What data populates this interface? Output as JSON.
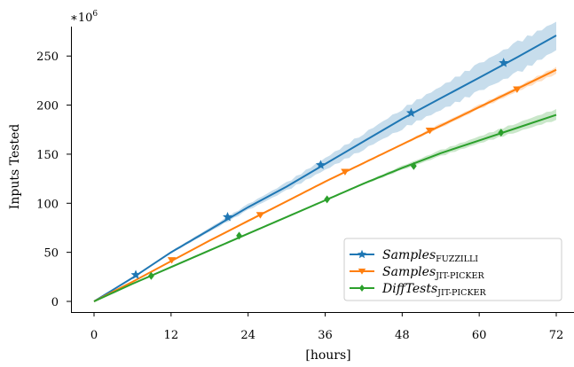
{
  "chart_data": {
    "type": "line",
    "title": "",
    "xlabel": "[hours]",
    "ylabel": "Inputs Tested",
    "y_multiplier_label": "∗10",
    "y_multiplier_exponent": "6",
    "xlim": [
      0,
      72
    ],
    "ylim": [
      0,
      280
    ],
    "x_ticks": [
      0,
      12,
      24,
      36,
      48,
      60,
      72
    ],
    "y_ticks": [
      0,
      50,
      100,
      150,
      200,
      250
    ],
    "grid": false,
    "legend_position": "lower-right",
    "series": [
      {
        "name": "Samples",
        "name_subscript": "Fuzzilli",
        "color": "#1f77b4",
        "marker": "star",
        "x": [
          0,
          6,
          12,
          18,
          24,
          30,
          36,
          42,
          48,
          54,
          60,
          66,
          72
        ],
        "y": [
          0,
          24,
          50,
          73,
          96,
          117,
          140,
          163,
          186,
          207,
          228,
          249,
          271
        ],
        "band_low": [
          0,
          24,
          49,
          71,
          93,
          113,
          134,
          155,
          176,
          195,
          214,
          233,
          256
        ],
        "band_high": [
          0,
          25,
          51,
          75,
          99,
          121,
          146,
          171,
          196,
          219,
          242,
          264,
          285
        ],
        "marker_x": [
          6.5,
          20.8,
          35.3,
          49.4,
          63.8
        ],
        "marker_y": [
          27,
          86,
          139,
          192,
          243
        ]
      },
      {
        "name": "Samples",
        "name_subscript": "Jit-Picker",
        "color": "#ff7f0e",
        "marker": "triangle-down",
        "x": [
          0,
          6,
          12,
          18,
          24,
          30,
          36,
          42,
          48,
          54,
          60,
          66,
          72
        ],
        "y": [
          0,
          20,
          41,
          62,
          82,
          102,
          122,
          141,
          160,
          179,
          198,
          217,
          236
        ],
        "band_low": [
          0,
          20,
          41,
          61,
          81,
          101,
          121,
          140,
          159,
          177,
          196,
          214,
          232
        ],
        "band_high": [
          0,
          20,
          41,
          63,
          83,
          103,
          123,
          142,
          161,
          181,
          200,
          219,
          239
        ],
        "marker_x": [
          12.1,
          25.9,
          39.1,
          52.3,
          65.9
        ],
        "marker_y": [
          42,
          88,
          132,
          174,
          216
        ]
      },
      {
        "name": "DiffTests",
        "name_subscript": "Jit-Picker",
        "color": "#2ca02c",
        "marker": "diamond",
        "x": [
          0,
          6,
          12,
          18,
          24,
          30,
          36,
          42,
          48,
          54,
          60,
          66,
          72
        ],
        "y": [
          0,
          18,
          35,
          52,
          69,
          86,
          103,
          120,
          136,
          151,
          164,
          177,
          190
        ],
        "band_low": [
          0,
          18,
          35,
          52,
          69,
          86,
          103,
          119,
          134,
          148,
          161,
          173,
          185
        ],
        "band_high": [
          0,
          18,
          36,
          53,
          70,
          87,
          104,
          121,
          138,
          154,
          168,
          182,
          196
        ],
        "marker_x": [
          8.9,
          22.6,
          36.3,
          49.8,
          63.4
        ],
        "marker_y": [
          26,
          67,
          104,
          138,
          172
        ]
      }
    ]
  }
}
